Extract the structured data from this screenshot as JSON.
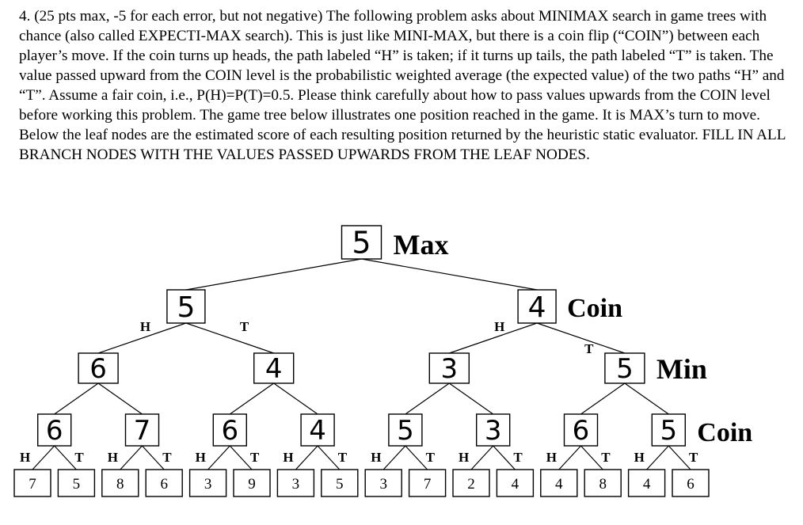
{
  "problem_text": "4. (25 pts max, -5 for each error, but not negative) The following problem asks about MINIMAX search in game trees with chance (also called EXPECTI-MAX search). This is just like MINI-MAX, but there is a coin flip (“COIN”) between each player’s move. If the coin turns up heads, the path labeled “H” is taken; if it turns up tails, the path labeled “T” is taken. The value passed upward from the COIN level is the probabilistic weighted average (the expected value) of the two paths “H” and “T”. Assume a fair coin, i.e., P(H)=P(T)=0.5. Please think carefully about how to pass values upwards from the COIN level before working this problem. The game tree below illustrates one position reached in the game. It is MAX’s turn to move. Below the leaf nodes are the estimated score of each resulting position returned by the heuristic static evaluator. FILL IN ALL BRANCH NODES WITH THE VALUES PASSED UPWARDS FROM THE LEAF NODES.",
  "level_labels": [
    "Max",
    "Coin",
    "Min",
    "Coin"
  ],
  "branch_h": "H",
  "branch_t": "T",
  "tree": {
    "root_value": "5",
    "coin1_values": [
      "5",
      "4"
    ],
    "min_values": [
      "6",
      "4",
      "3",
      "5"
    ],
    "coin2_values": [
      "6",
      "7",
      "6",
      "4",
      "5",
      "3",
      "6",
      "5"
    ],
    "leaf_values": [
      "7",
      "5",
      "8",
      "6",
      "3",
      "9",
      "3",
      "5",
      "3",
      "7",
      "2",
      "4",
      "4",
      "8",
      "4",
      "6"
    ]
  }
}
